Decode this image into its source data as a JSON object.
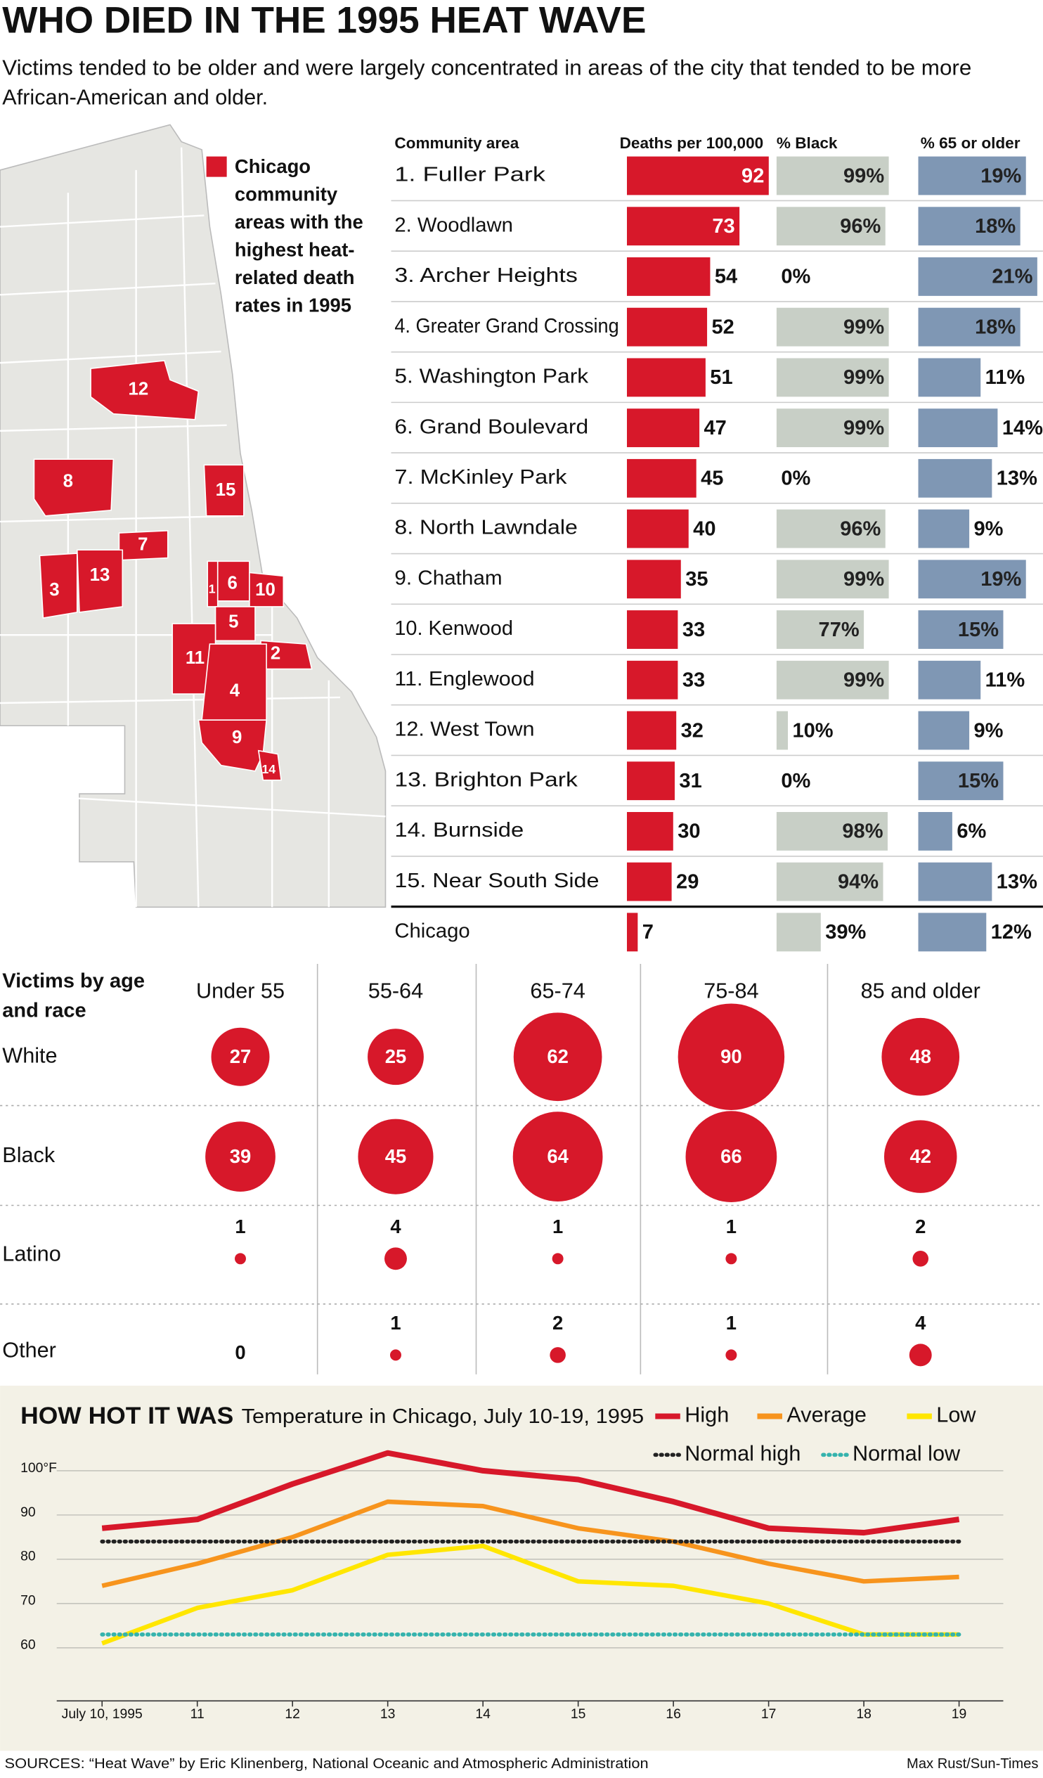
{
  "title": "WHO DIED IN THE 1995 HEAT WAVE",
  "subtitle": [
    "Victims tended to be older and were largely concentrated in areas of the city that tended to be more",
    "African-American and older."
  ],
  "map": {
    "legend": [
      "Chicago",
      "community",
      "areas with the",
      "highest heat-",
      "related death",
      "rates in 1995"
    ],
    "labels": [
      "1",
      "2",
      "3",
      "4",
      "5",
      "6",
      "7",
      "8",
      "9",
      "10",
      "11",
      "12",
      "13",
      "14",
      "15"
    ]
  },
  "chart_data": [
    {
      "type": "bar",
      "category_label": "Community area",
      "categories": [
        "1. Fuller Park",
        "2. Woodlawn",
        "3. Archer Heights",
        "4. Greater Grand Crossing",
        "5. Washington Park",
        "6. Grand Boulevard",
        "7. McKinley Park",
        "8. North Lawndale",
        "9. Chatham",
        "10. Kenwood",
        "11. Englewood",
        "12. West Town",
        "13. Brighton Park",
        "14. Burnside",
        "15. Near South Side",
        "Chicago"
      ],
      "series": [
        {
          "name": "Deaths per 100,000",
          "color": "#d7182a",
          "values": [
            92,
            73,
            54,
            52,
            51,
            47,
            45,
            40,
            35,
            33,
            33,
            32,
            31,
            30,
            29,
            7
          ]
        },
        {
          "name": "% Black",
          "color": "#c8cfc6",
          "values": [
            99,
            96,
            0,
            99,
            99,
            99,
            0,
            96,
            99,
            77,
            99,
            10,
            0,
            98,
            94,
            39
          ],
          "value_labels": [
            "99%",
            "96%",
            "0%",
            "99%",
            "99%",
            "99%",
            "0%",
            "96%",
            "99%",
            "77%",
            "99%",
            "10%",
            "0%",
            "98%",
            "94%",
            "39%"
          ]
        },
        {
          "name": "% 65 or older",
          "color": "#7f97b4",
          "values": [
            19,
            18,
            21,
            18,
            11,
            14,
            13,
            9,
            19,
            15,
            11,
            9,
            15,
            6,
            13,
            12
          ],
          "value_labels": [
            "19%",
            "18%",
            "21%",
            "18%",
            "11%",
            "14%",
            "13%",
            "9%",
            "19%",
            "15%",
            "11%",
            "9%",
            "15%",
            "6%",
            "13%",
            "12%"
          ]
        }
      ]
    },
    {
      "type": "bubble",
      "title": [
        "Victims by age",
        "and race"
      ],
      "color": "#d7182a",
      "categories": [
        "Under 55",
        "55-64",
        "65-74",
        "75-84",
        "85 and older"
      ],
      "series": [
        {
          "name": "White",
          "values": [
            27,
            25,
            62,
            90,
            48
          ]
        },
        {
          "name": "Black",
          "values": [
            39,
            45,
            64,
            66,
            42
          ]
        },
        {
          "name": "Latino",
          "values": [
            1,
            4,
            1,
            1,
            2
          ]
        },
        {
          "name": "Other",
          "values": [
            0,
            1,
            2,
            1,
            4
          ]
        }
      ]
    },
    {
      "type": "line",
      "title": "HOW HOT IT WAS",
      "subtitle": "Temperature in Chicago, July 10-19, 1995",
      "categories": [
        "July 10, 1995",
        "11",
        "12",
        "13",
        "14",
        "15",
        "16",
        "17",
        "18",
        "19"
      ],
      "ylim": [
        48,
        100
      ],
      "yticks": [
        {
          "value": 100,
          "label": "100°F"
        },
        90,
        80,
        70,
        60
      ],
      "grid": true,
      "series": [
        {
          "name": "High",
          "color": "#d7182a",
          "values": [
            87,
            89,
            97,
            104,
            100,
            98,
            93,
            87,
            86,
            89
          ]
        },
        {
          "name": "Average",
          "color": "#f7941d",
          "values": [
            74,
            79,
            85,
            93,
            92,
            87,
            84,
            79,
            75,
            76
          ]
        },
        {
          "name": "Low",
          "color": "#ffe600",
          "values": [
            61,
            69,
            73,
            81,
            83,
            75,
            74,
            70,
            63,
            63
          ]
        },
        {
          "name": "Normal high",
          "color": "#222222",
          "dotted": true,
          "values": [
            84,
            84,
            84,
            84,
            84,
            84,
            84,
            84,
            84,
            84
          ]
        },
        {
          "name": "Normal low",
          "color": "#35b3ad",
          "dotted": true,
          "values": [
            63,
            63,
            63,
            63,
            63,
            63,
            63,
            63,
            63,
            63
          ]
        }
      ]
    }
  ],
  "sources": "SOURCES: “Heat Wave” by Eric Klinenberg, National Oceanic and Atmospheric Administration",
  "credit": "Max Rust/Sun-Times"
}
